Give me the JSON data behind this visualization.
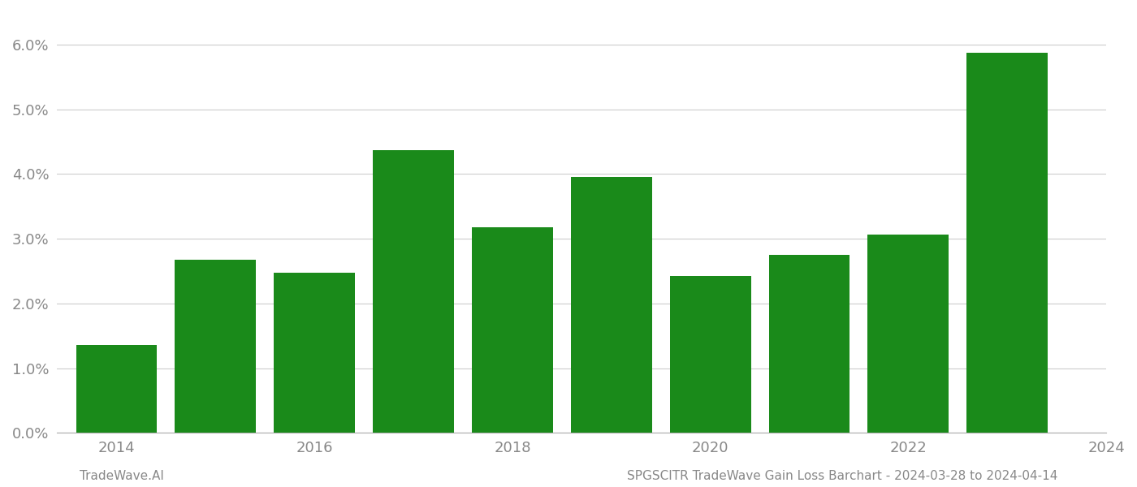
{
  "years": [
    2014,
    2015,
    2016,
    2017,
    2018,
    2019,
    2020,
    2021,
    2022,
    2023
  ],
  "positions": [
    0,
    1,
    2,
    3,
    4,
    5,
    6,
    7,
    8,
    9
  ],
  "values": [
    0.0136,
    0.0268,
    0.0247,
    0.0437,
    0.0318,
    0.0395,
    0.0242,
    0.0275,
    0.0306,
    0.0587
  ],
  "bar_color": "#1a8a1a",
  "background_color": "#ffffff",
  "grid_color": "#cccccc",
  "tick_color": "#888888",
  "ylim": [
    0,
    0.065
  ],
  "yticks": [
    0.0,
    0.01,
    0.02,
    0.03,
    0.04,
    0.05,
    0.06
  ],
  "xtick_positions": [
    0,
    2,
    4,
    6,
    8,
    10
  ],
  "xtick_labels": [
    "2014",
    "2016",
    "2018",
    "2020",
    "2022",
    "2024"
  ],
  "xlim_left": -0.6,
  "xlim_right": 10.0,
  "bar_width": 0.82,
  "footer_left": "TradeWave.AI",
  "footer_right": "SPGSCITR TradeWave Gain Loss Barchart - 2024-03-28 to 2024-04-14",
  "footer_color": "#888888",
  "tick_fontsize": 13,
  "footer_fontsize": 11
}
